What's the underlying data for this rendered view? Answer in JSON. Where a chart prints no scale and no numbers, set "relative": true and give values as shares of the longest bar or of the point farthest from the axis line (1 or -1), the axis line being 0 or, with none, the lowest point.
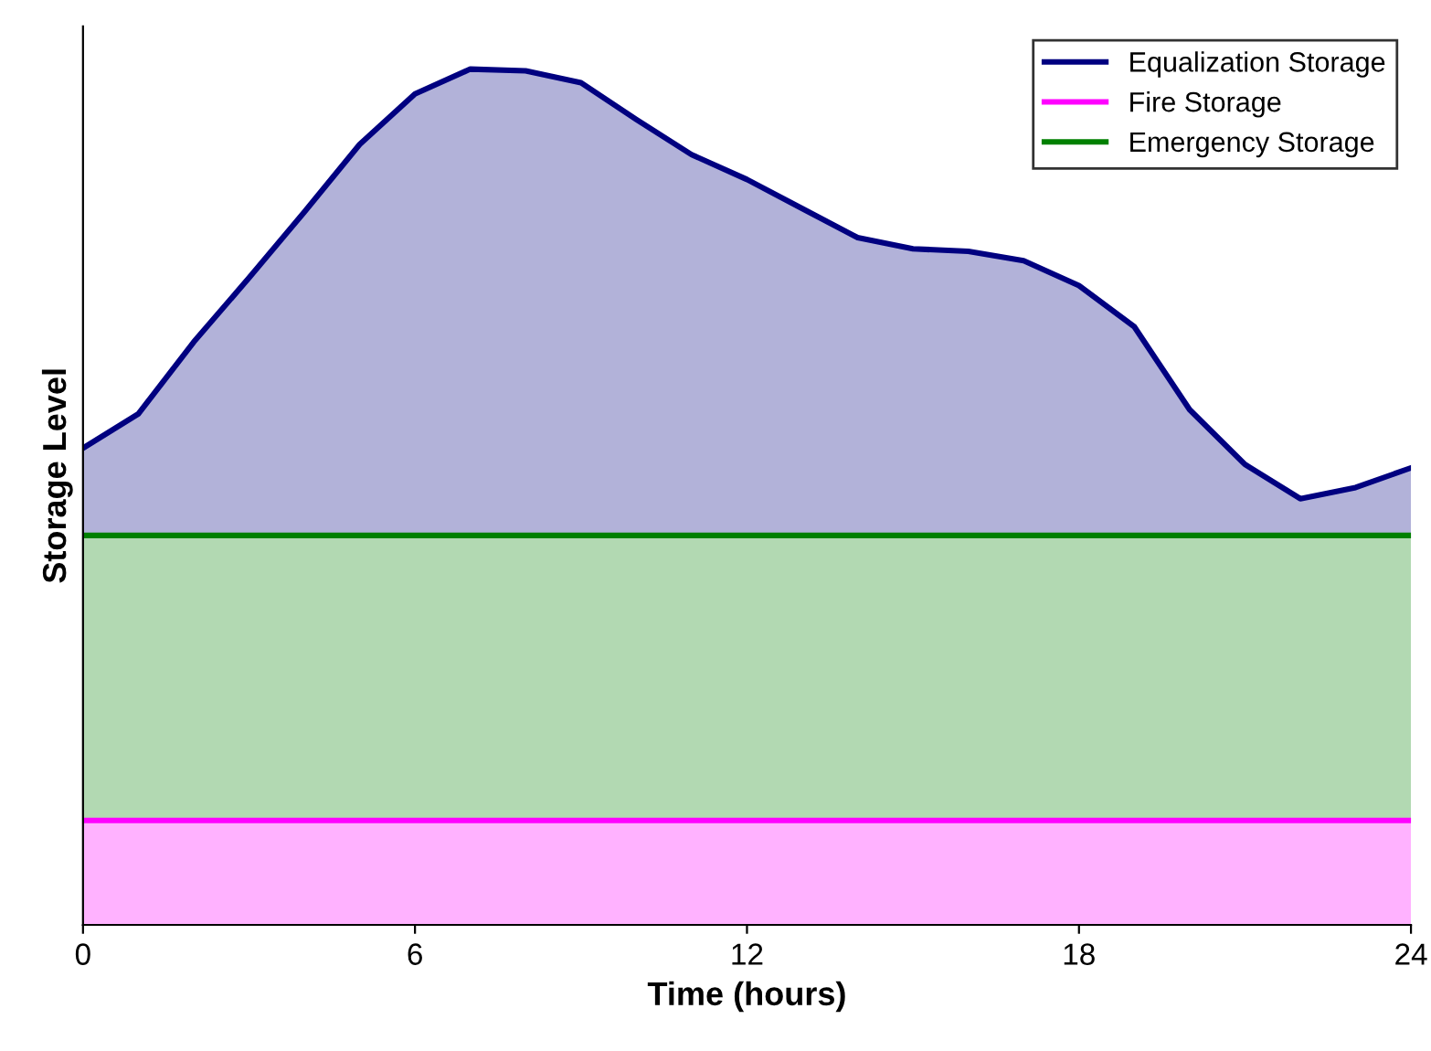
{
  "chart_data": {
    "type": "area",
    "relative": true,
    "xlabel": "Time (hours)",
    "ylabel": "Storage Level",
    "x": [
      0,
      1,
      2,
      3,
      4,
      5,
      6,
      7,
      8,
      9,
      10,
      11,
      12,
      13,
      14,
      15,
      16,
      17,
      18,
      19,
      20,
      21,
      22,
      23,
      24
    ],
    "series": [
      {
        "name": "Equalization Storage",
        "color": "#000080",
        "values": [
          0.557,
          0.597,
          0.681,
          0.756,
          0.833,
          0.912,
          0.971,
          1.0,
          0.998,
          0.984,
          0.941,
          0.9,
          0.871,
          0.837,
          0.803,
          0.79,
          0.787,
          0.776,
          0.747,
          0.699,
          0.602,
          0.538,
          0.498,
          0.511,
          0.534
        ]
      },
      {
        "name": "Fire Storage",
        "color": "#ff00ff",
        "values": [
          0.122,
          0.122,
          0.122,
          0.122,
          0.122,
          0.122,
          0.122,
          0.122,
          0.122,
          0.122,
          0.122,
          0.122,
          0.122,
          0.122,
          0.122,
          0.122,
          0.122,
          0.122,
          0.122,
          0.122,
          0.122,
          0.122,
          0.122,
          0.122,
          0.122
        ]
      },
      {
        "name": "Emergency Storage",
        "color": "#008000",
        "values": [
          0.455,
          0.455,
          0.455,
          0.455,
          0.455,
          0.455,
          0.455,
          0.455,
          0.455,
          0.455,
          0.455,
          0.455,
          0.455,
          0.455,
          0.455,
          0.455,
          0.455,
          0.455,
          0.455,
          0.455,
          0.455,
          0.455,
          0.455,
          0.455,
          0.455
        ]
      }
    ],
    "xlim": [
      0,
      24
    ],
    "xticks": [
      0,
      6,
      12,
      18,
      24
    ],
    "tick_labels": "x",
    "grid": false,
    "legend": "top right"
  }
}
